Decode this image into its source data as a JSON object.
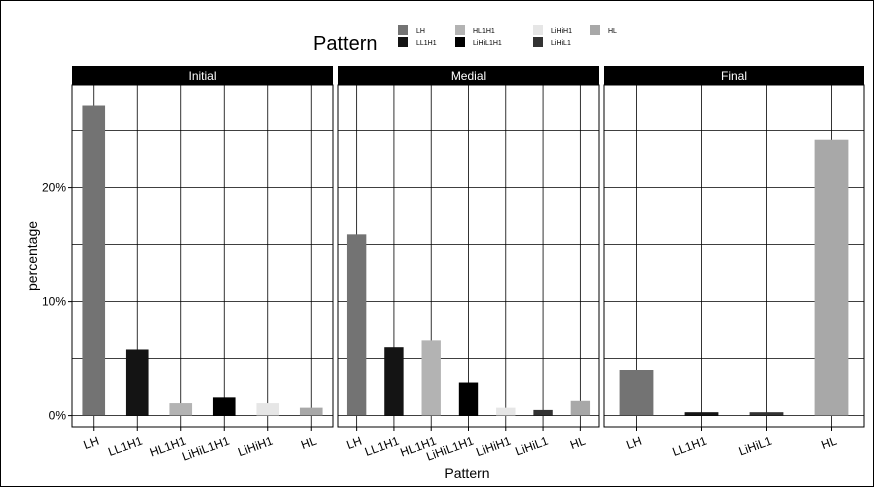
{
  "chart_data": {
    "type": "bar",
    "legend": {
      "title": "Pattern",
      "placement": "top",
      "items": [
        {
          "label": "LH",
          "color": "#737373"
        },
        {
          "label": "HL1H1",
          "color": "#b3b3b3"
        },
        {
          "label": "LiHiH1",
          "color": "#e6e6e6"
        },
        {
          "label": "HL",
          "color": "#a8a8a8"
        },
        {
          "label": "LL1H1",
          "color": "#141414"
        },
        {
          "label": "LiHiL1H1",
          "color": "#000000"
        },
        {
          "label": "LiHiL1",
          "color": "#333333"
        }
      ]
    },
    "xlabel": "Pattern",
    "ylabel": "percentage",
    "ylim": [
      -1,
      29
    ],
    "yticks": [
      0,
      10,
      20
    ],
    "ytick_labels": [
      "0%",
      "10%",
      "20%"
    ],
    "grid": true,
    "panels": [
      {
        "title": "Initial",
        "categories": [
          "LH",
          "LL1H1",
          "HL1H1",
          "LiHiL1H1",
          "LiHiH1",
          "HL"
        ],
        "values": [
          27.2,
          5.8,
          1.1,
          1.6,
          1.1,
          0.7
        ],
        "colors": [
          "#737373",
          "#141414",
          "#b3b3b3",
          "#000000",
          "#e6e6e6",
          "#a8a8a8"
        ]
      },
      {
        "title": "Medial",
        "categories": [
          "LH",
          "LL1H1",
          "HL1H1",
          "LiHiL1H1",
          "LiHiH1",
          "LiHiL1",
          "HL"
        ],
        "values": [
          15.9,
          6.0,
          6.6,
          2.9,
          0.7,
          0.5,
          1.3
        ],
        "colors": [
          "#737373",
          "#141414",
          "#b3b3b3",
          "#000000",
          "#e6e6e6",
          "#333333",
          "#a8a8a8"
        ]
      },
      {
        "title": "Final",
        "categories": [
          "LH",
          "LL1H1",
          "LiHiL1",
          "HL"
        ],
        "values": [
          4.0,
          0.3,
          0.3,
          24.2
        ],
        "colors": [
          "#737373",
          "#141414",
          "#333333",
          "#a8a8a8"
        ]
      }
    ]
  }
}
